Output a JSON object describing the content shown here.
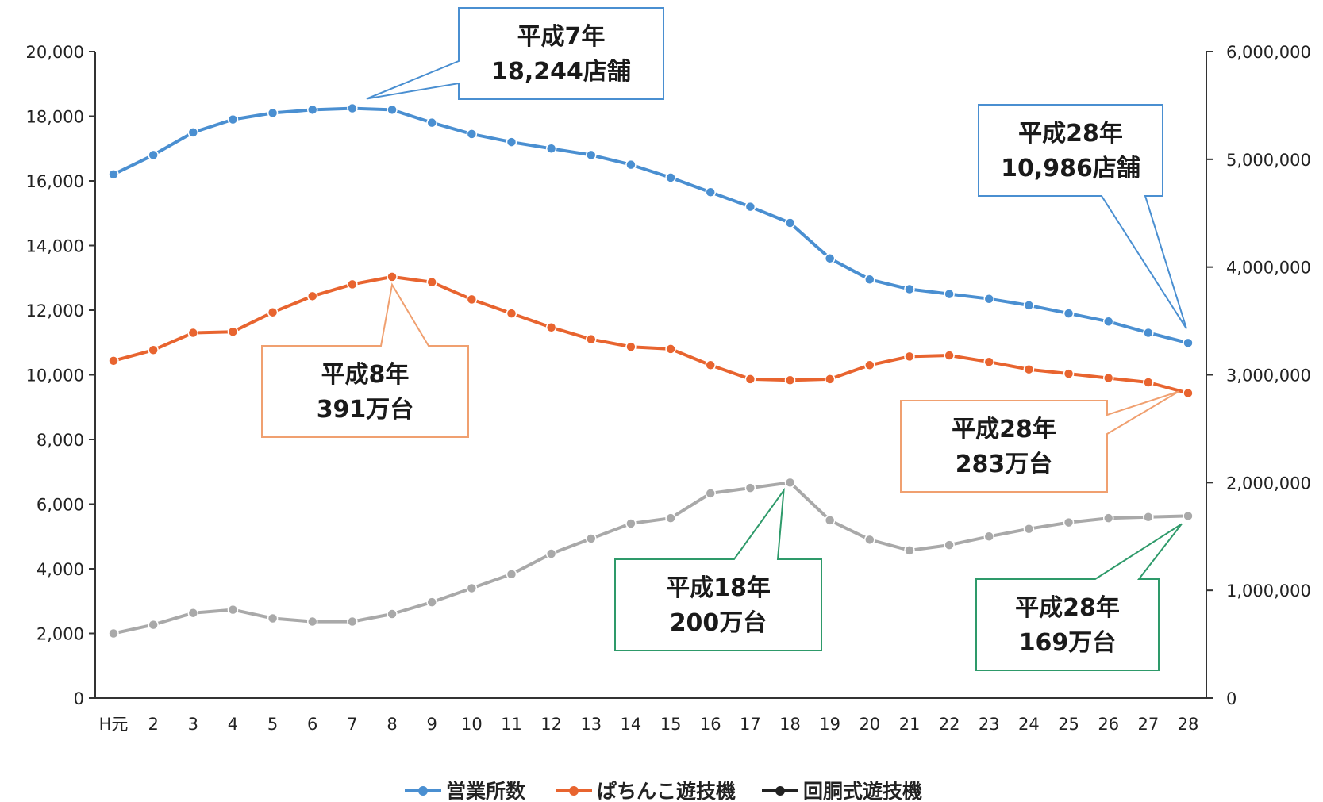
{
  "chart_data": {
    "type": "line",
    "categories": [
      "H元",
      "2",
      "3",
      "4",
      "5",
      "6",
      "7",
      "8",
      "9",
      "10",
      "11",
      "12",
      "13",
      "14",
      "15",
      "16",
      "17",
      "18",
      "19",
      "20",
      "21",
      "22",
      "23",
      "24",
      "25",
      "26",
      "27",
      "28"
    ],
    "y_left": {
      "ticks": [
        "0",
        "2,000",
        "4,000",
        "6,000",
        "8,000",
        "10,000",
        "12,000",
        "14,000",
        "16,000",
        "18,000",
        "20,000"
      ],
      "ylim": [
        0,
        20000
      ]
    },
    "y_right": {
      "ticks": [
        "0",
        "1,000,000",
        "2,000,000",
        "3,000,000",
        "4,000,000",
        "5,000,000",
        "6,000,000"
      ],
      "ylim": [
        0,
        6000000
      ]
    },
    "grid": false,
    "legend_position": "bottom",
    "series": [
      {
        "name": "営業所数",
        "axis": "left",
        "color": "#4a8fd1",
        "values": [
          16200,
          16800,
          17500,
          17900,
          18100,
          18200,
          18244,
          18200,
          17800,
          17450,
          17200,
          17000,
          16800,
          16500,
          16100,
          15650,
          15200,
          14700,
          13600,
          12950,
          12650,
          12500,
          12350,
          12150,
          11900,
          11650,
          11300,
          10986
        ]
      },
      {
        "name": "ぱちんこ遊技機",
        "axis": "right",
        "color": "#e8642f",
        "values": [
          3130000,
          3230000,
          3390000,
          3400000,
          3580000,
          3730000,
          3840000,
          3910000,
          3860000,
          3700000,
          3570000,
          3440000,
          3330000,
          3260000,
          3240000,
          3090000,
          2960000,
          2950000,
          2960000,
          3090000,
          3170000,
          3180000,
          3120000,
          3050000,
          3010000,
          2970000,
          2930000,
          2830000
        ]
      },
      {
        "name": "回胴式遊技機",
        "axis": "right",
        "color": "#a9a9a9",
        "legend_color": "#222222",
        "values": [
          600000,
          680000,
          790000,
          820000,
          740000,
          710000,
          710000,
          780000,
          890000,
          1020000,
          1150000,
          1340000,
          1480000,
          1620000,
          1670000,
          1900000,
          1950000,
          2000000,
          1650000,
          1470000,
          1370000,
          1420000,
          1500000,
          1570000,
          1630000,
          1670000,
          1680000,
          1690000
        ]
      }
    ],
    "annotations": [
      {
        "id": "a1",
        "series": 0,
        "point": 6,
        "lines": [
          "平成7年",
          "18,244店舗"
        ],
        "color": "#4a8fd1"
      },
      {
        "id": "a2",
        "series": 0,
        "point": 27,
        "lines": [
          "平成28年",
          "10,986店舗"
        ],
        "color": "#4a8fd1"
      },
      {
        "id": "a3",
        "series": 1,
        "point": 7,
        "lines": [
          "平成8年",
          "391万台"
        ],
        "color": "#f0a070"
      },
      {
        "id": "a4",
        "series": 1,
        "point": 27,
        "lines": [
          "平成28年",
          "283万台"
        ],
        "color": "#f0a070"
      },
      {
        "id": "a5",
        "series": 2,
        "point": 17,
        "lines": [
          "平成18年",
          "200万台"
        ],
        "color": "#2e9a6a"
      },
      {
        "id": "a6",
        "series": 2,
        "point": 27,
        "lines": [
          "平成28年",
          "169万台"
        ],
        "color": "#2e9a6a"
      }
    ]
  }
}
